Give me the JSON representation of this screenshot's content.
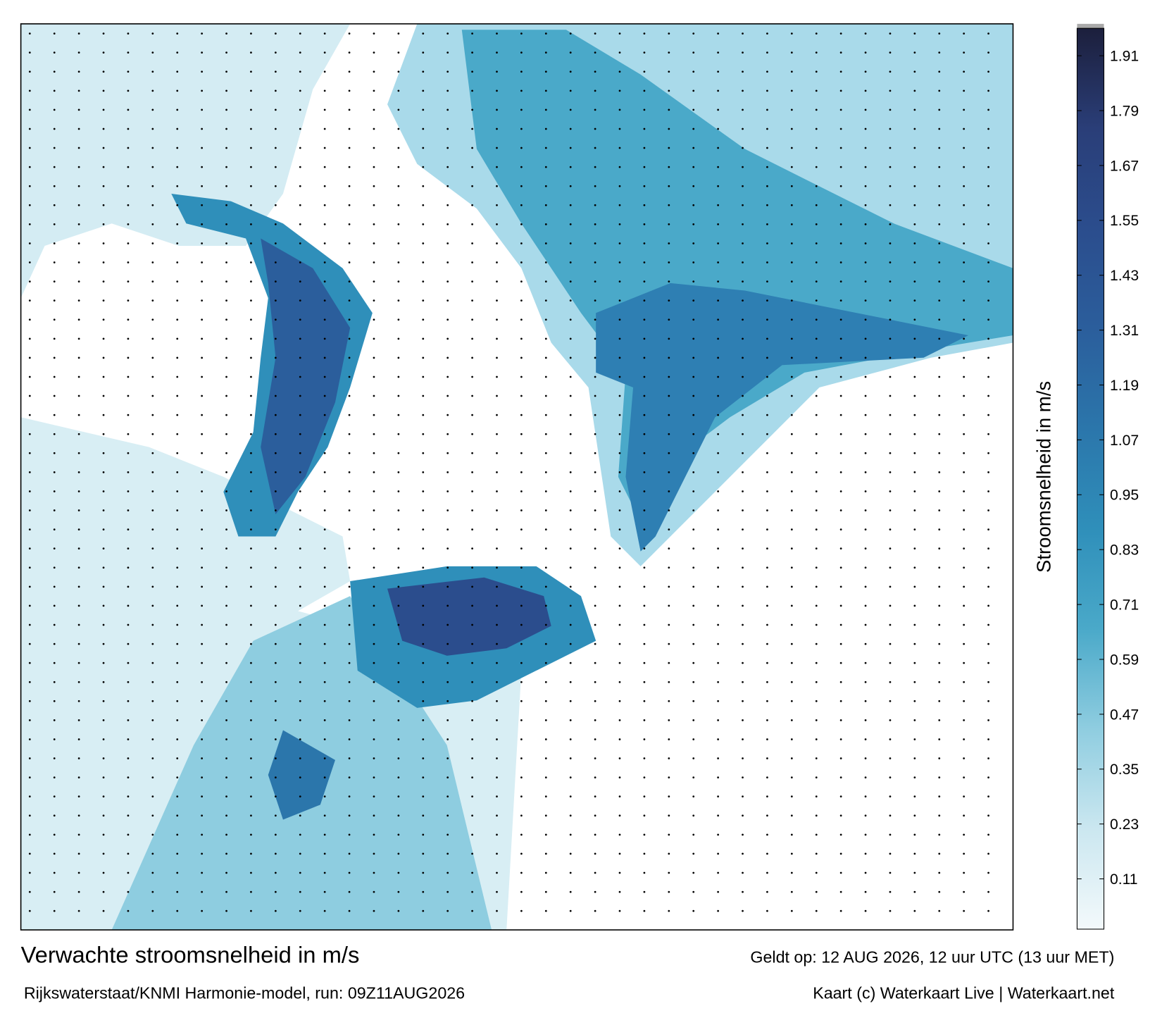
{
  "title": "Verwachte stroomsnelheid in m/s",
  "subtitle": "Rijkswaterstaat/KNMI Harmonie-model, run: 09Z11AUG2026",
  "valid_time": "Geldt op: 12 AUG 2026, 12 uur UTC (13 uur MET)",
  "credit": "Kaart (c) Waterkaart Live | Waterkaart.net",
  "colorbar": {
    "label": "Stroomsnelheid in m/s",
    "lim": [
      0,
      1.97
    ],
    "ticks": [
      0.11,
      0.23,
      0.35,
      0.47,
      0.59,
      0.71,
      0.83,
      0.95,
      1.07,
      1.19,
      1.31,
      1.43,
      1.55,
      1.67,
      1.79,
      1.91
    ],
    "colors": [
      "#f3f9fb",
      "#cbe7f0",
      "#8fcde0",
      "#4aa9c9",
      "#2f8fba",
      "#2b76ab",
      "#2b5e9c",
      "#2b4d8d",
      "#2a3e78",
      "#1c1f3c"
    ]
  }
}
